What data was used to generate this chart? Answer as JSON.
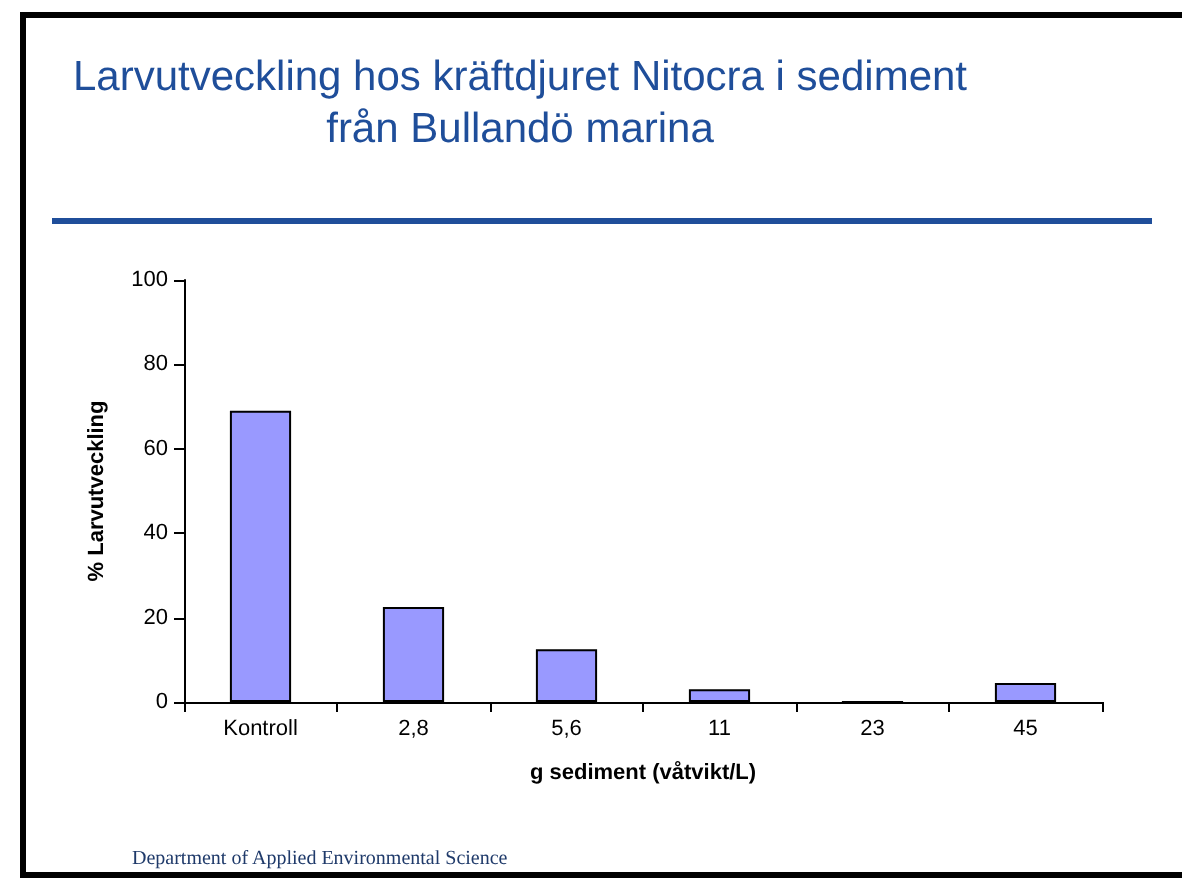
{
  "chart_data": {
    "type": "bar",
    "title": "Larvutveckling hos kräftdjuret Nitocra i sediment från Bullandö marina",
    "xlabel": "g sediment (våtvikt/L)",
    "ylabel": "% Larvutveckling",
    "categories": [
      "Kontroll",
      "2,8",
      "5,6",
      "11",
      "23",
      "45"
    ],
    "values": [
      69,
      22.5,
      12.5,
      3,
      0,
      4.5
    ],
    "color": "#9999ff",
    "ylim": [
      0,
      100
    ],
    "yticks": [
      0,
      20,
      40,
      60,
      80,
      100
    ],
    "grid": false,
    "annotations": [
      "Department of Applied Environmental Science"
    ]
  }
}
